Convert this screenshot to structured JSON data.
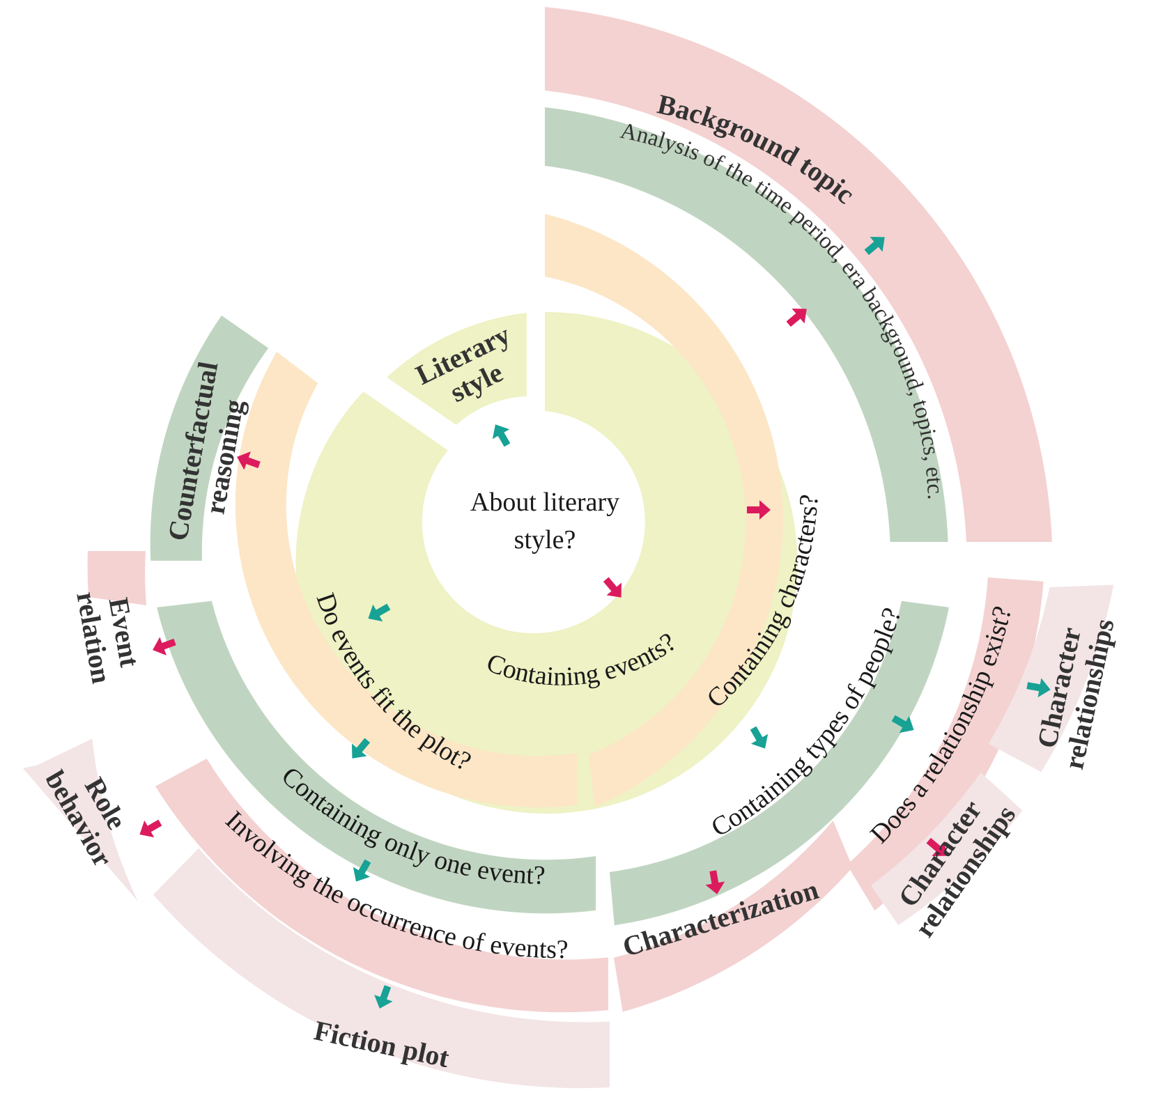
{
  "colors": {
    "yellow": "#EEF2C4",
    "peach": "#FCE6C6",
    "green": "#C0D5C1",
    "pink": "#F4D2D2",
    "lightpink": "#F3E4E6",
    "teal_arrow": "#18A195",
    "magenta_arrow": "#DC1B5E"
  },
  "center": {
    "line1": "About literary",
    "line2": "style?"
  },
  "ring1": {
    "literary_style": {
      "line1": "Literary",
      "line2": "style"
    },
    "containing_events": "Containing events?"
  },
  "ring2": {
    "do_events_fit": "Do events fit the plot?",
    "containing_characters": "Containing characters?"
  },
  "ring3": {
    "counterfactual": {
      "line1": "Counterfactual",
      "line2": "reasoning"
    },
    "containing_one_event": "Containing only one event?",
    "containing_types": "Containing types of people?",
    "analysis": "Analysis of the time period, era background, topics, etc."
  },
  "ring4": {
    "event_relation": {
      "line1": "Event",
      "line2": "relation"
    },
    "involving_occurrence": "Involving the occurrence of events?",
    "characterization": "Characterization",
    "relationship_exist": "Does a relationship exist?",
    "background_topic": "Background topic"
  },
  "ring5": {
    "role_behavior": {
      "line1": "Role",
      "line2": "behavior"
    },
    "fiction_plot": "Fiction plot",
    "character_relationships_a": {
      "line1": "Character",
      "line2": "relationships"
    },
    "character_relationships_b": {
      "line1": "Character",
      "line2": "relationships"
    }
  }
}
